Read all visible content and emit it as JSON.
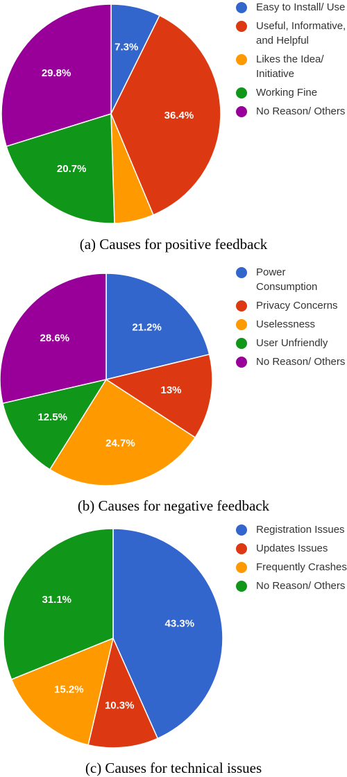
{
  "chart_data": [
    {
      "type": "pie",
      "caption": "(a) Causes for positive feedback",
      "legend_position": "right",
      "slices": [
        {
          "label": "Easy to Install/ Use",
          "value": 7.3,
          "value_label": "7.3%",
          "color": "#3366cc"
        },
        {
          "label": "Useful, Informative, and Helpful",
          "value": 36.4,
          "value_label": "36.4%",
          "color": "#dc3912"
        },
        {
          "label": "Likes the Idea/ Initiative",
          "value": 5.8,
          "value_label": "",
          "color": "#ff9900"
        },
        {
          "label": "Working Fine",
          "value": 20.7,
          "value_label": "20.7%",
          "color": "#109618"
        },
        {
          "label": "No Reason/ Others",
          "value": 29.8,
          "value_label": "29.8%",
          "color": "#990099"
        }
      ]
    },
    {
      "type": "pie",
      "caption": "(b) Causes for negative feedback",
      "legend_position": "right",
      "slices": [
        {
          "label": "Power Consumption",
          "value": 21.2,
          "value_label": "21.2%",
          "color": "#3366cc"
        },
        {
          "label": "Privacy Concerns",
          "value": 13,
          "value_label": "13%",
          "color": "#dc3912"
        },
        {
          "label": "Uselessness",
          "value": 24.7,
          "value_label": "24.7%",
          "color": "#ff9900"
        },
        {
          "label": "User Unfriendly",
          "value": 12.5,
          "value_label": "12.5%",
          "color": "#109618"
        },
        {
          "label": "No Reason/ Others",
          "value": 28.6,
          "value_label": "28.6%",
          "color": "#990099"
        }
      ]
    },
    {
      "type": "pie",
      "caption": "(c) Causes for technical issues",
      "legend_position": "right",
      "slices": [
        {
          "label": "Registration Issues",
          "value": 43.3,
          "value_label": "43.3%",
          "color": "#3366cc"
        },
        {
          "label": "Updates Issues",
          "value": 10.3,
          "value_label": "10.3%",
          "color": "#dc3912"
        },
        {
          "label": "Frequently Crashes",
          "value": 15.2,
          "value_label": "15.2%",
          "color": "#ff9900"
        },
        {
          "label": "No Reason/ Others",
          "value": 31.1,
          "value_label": "31.1%",
          "color": "#109618"
        }
      ]
    }
  ]
}
